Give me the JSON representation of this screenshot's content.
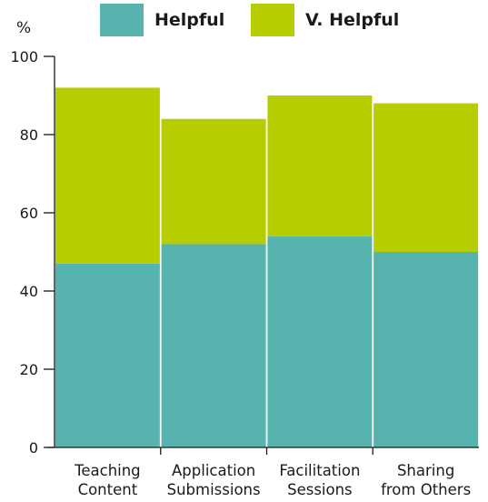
{
  "chart_data": {
    "type": "bar",
    "stacked": true,
    "categories": [
      "Teaching\nContent",
      "Application\nSubmissions",
      "Facilitation\nSessions",
      "Sharing\nfrom Others"
    ],
    "series": [
      {
        "name": "Helpful",
        "values": [
          47,
          52,
          54,
          50
        ],
        "color": "#56b3ae"
      },
      {
        "name": "V. Helpful",
        "values": [
          45,
          32,
          36,
          38
        ],
        "color": "#b6cd02"
      }
    ],
    "ylabel": "%",
    "ylim": [
      0,
      100
    ],
    "yticks": [
      0,
      20,
      40,
      60,
      80,
      100
    ],
    "grid": false,
    "legend_position": "top"
  }
}
